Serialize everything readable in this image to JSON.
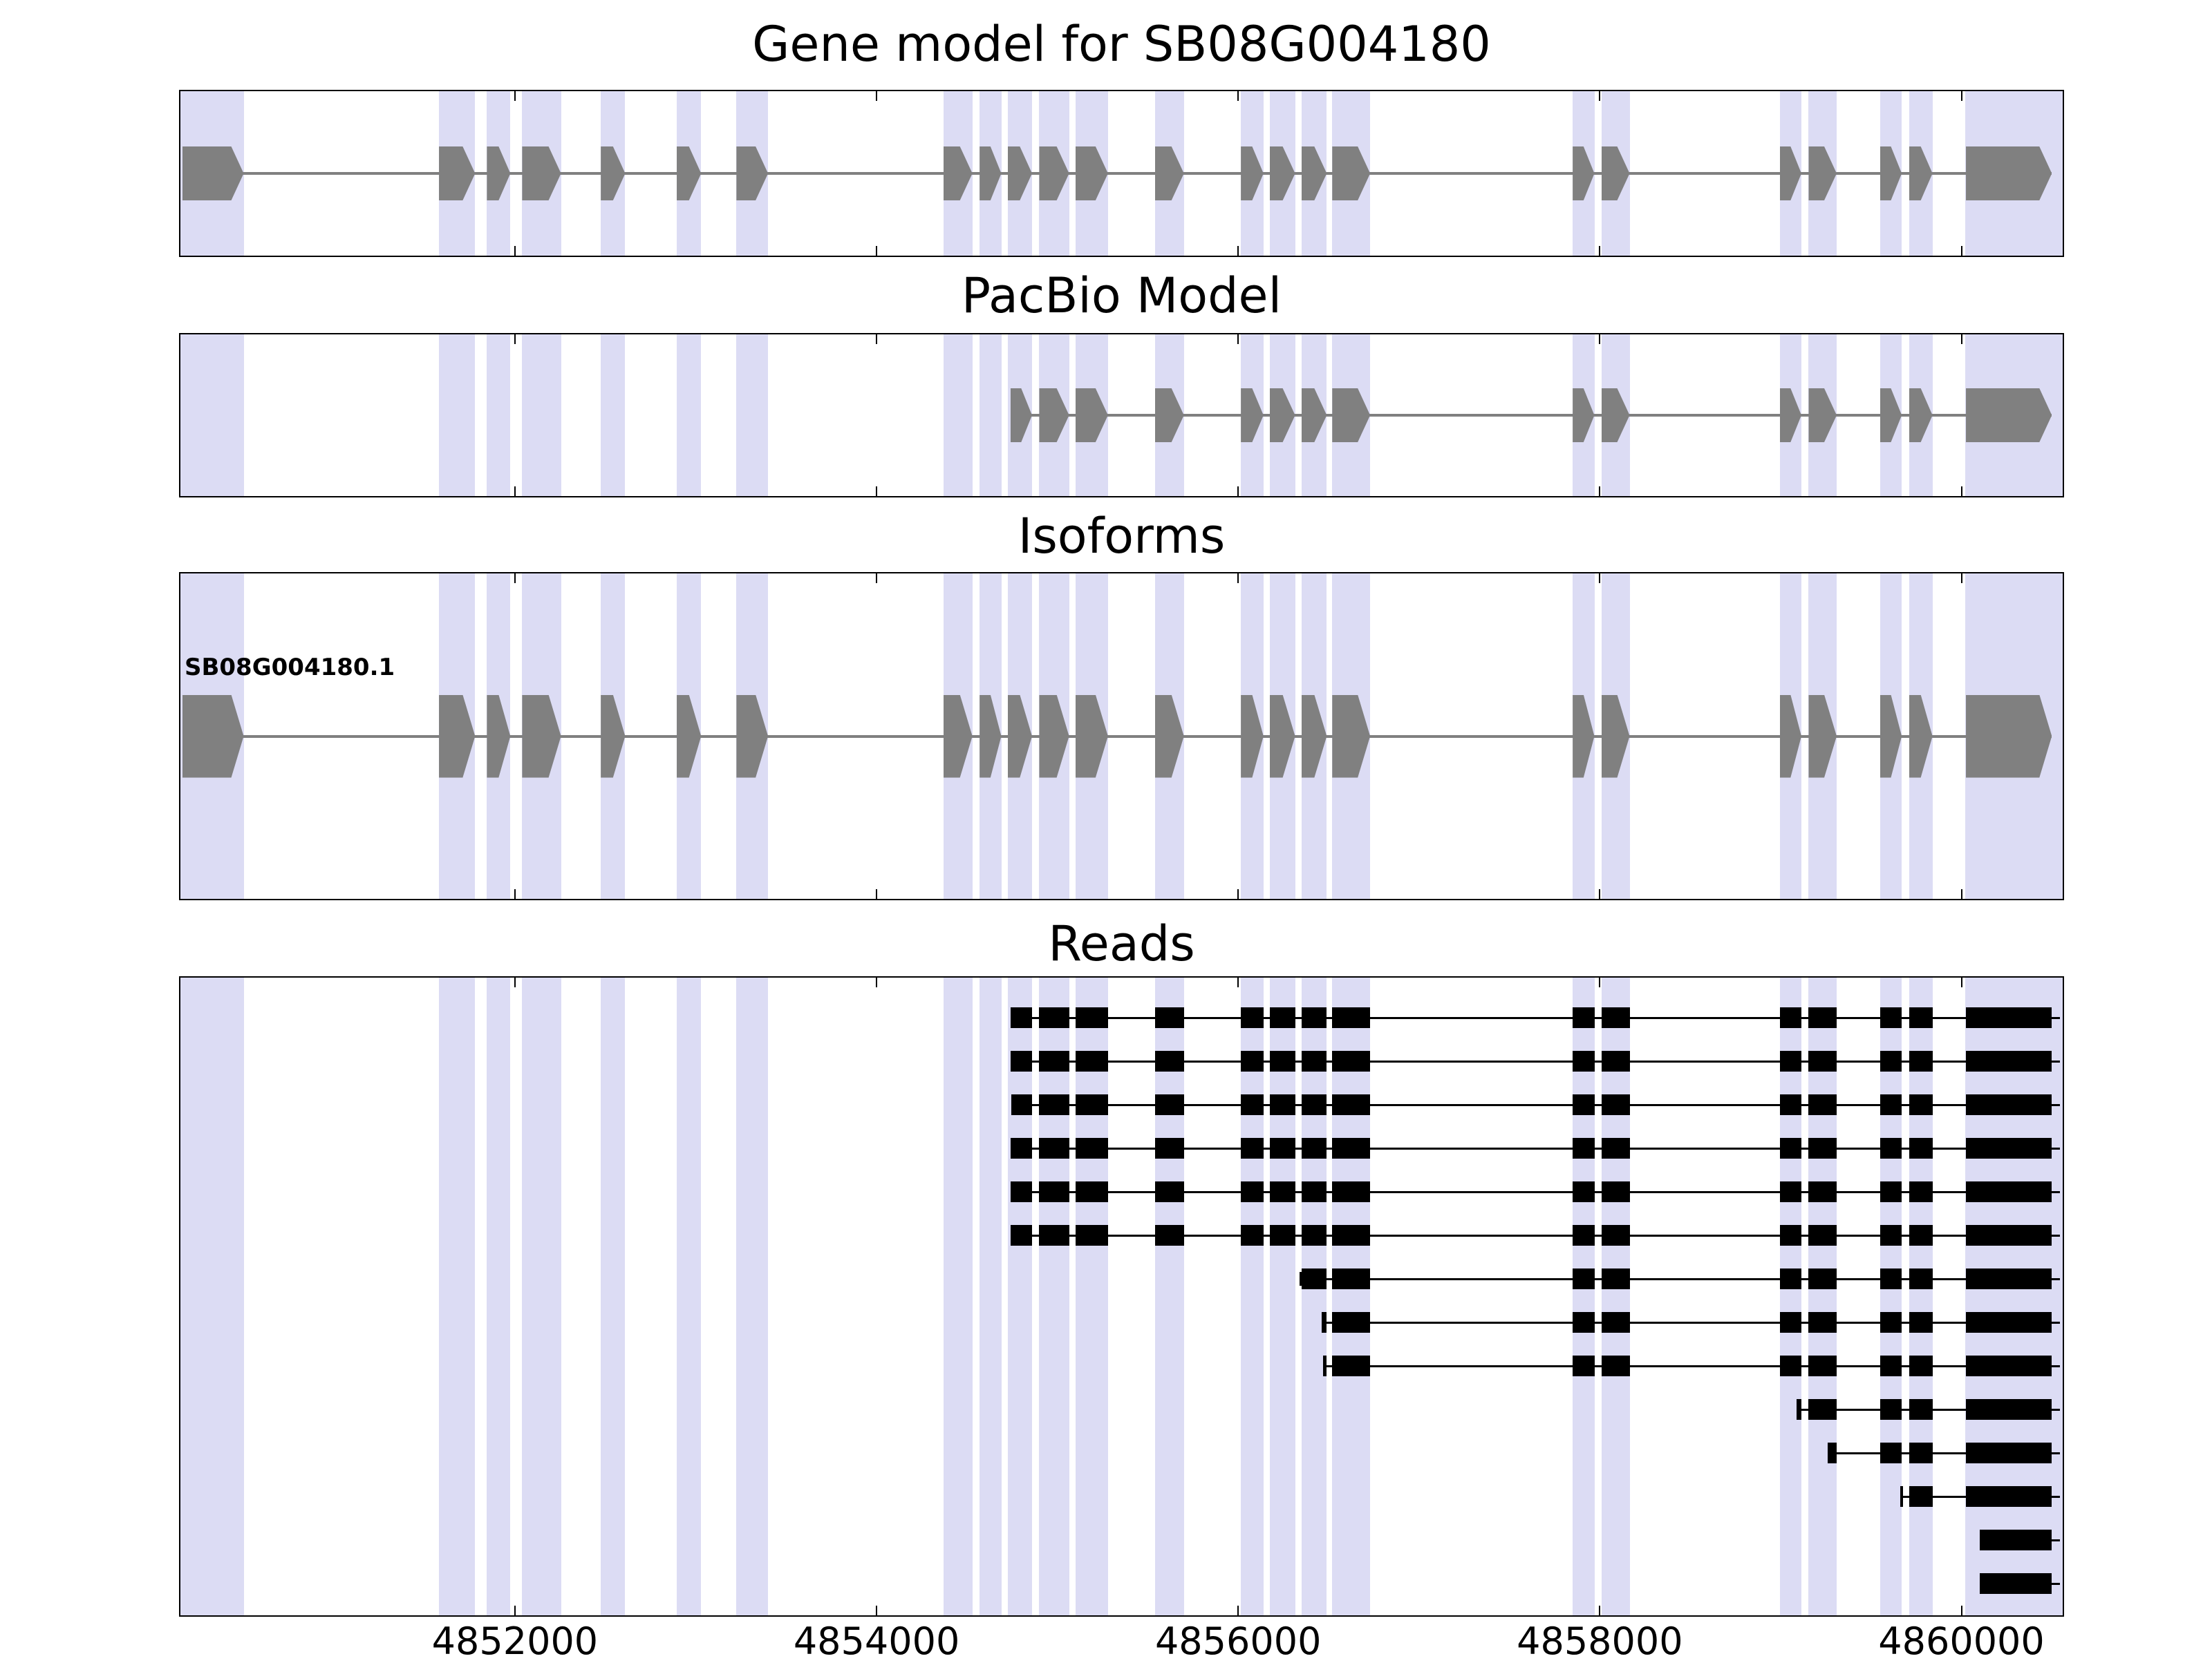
{
  "chart_data": {
    "type": "gene-model-tracks",
    "xlim": [
      4850150,
      4860560
    ],
    "xticks": [
      4852000,
      4854000,
      4856000,
      4858000,
      4860000
    ],
    "xtick_labels": [
      "4852000",
      "4854000",
      "4856000",
      "4858000",
      "4860000"
    ],
    "colors": {
      "exon": "#808080",
      "intron_line": "#808080",
      "read": "#000000",
      "shading": "#dcdcf4",
      "border": "#000000",
      "background": "#ffffff"
    },
    "strand": "+",
    "shading": [
      [
        4850150,
        4850500
      ],
      [
        4851580,
        4851780
      ],
      [
        4851845,
        4851975
      ],
      [
        4852040,
        4852255
      ],
      [
        4852475,
        4852610
      ],
      [
        4852895,
        4853030
      ],
      [
        4853225,
        4853400
      ],
      [
        4854370,
        4854530
      ],
      [
        4854570,
        4854690
      ],
      [
        4854725,
        4854860
      ],
      [
        4854900,
        4855065
      ],
      [
        4855100,
        4855280
      ],
      [
        4855540,
        4855700
      ],
      [
        4856015,
        4856140
      ],
      [
        4856175,
        4856315
      ],
      [
        4856350,
        4856490
      ],
      [
        4856520,
        4856730
      ],
      [
        4857850,
        4857970
      ],
      [
        4858010,
        4858165
      ],
      [
        4858995,
        4859115
      ],
      [
        4859155,
        4859310
      ],
      [
        4859550,
        4859670
      ],
      [
        4859710,
        4859840
      ],
      [
        4860020,
        4860560
      ]
    ],
    "panels": [
      {
        "title": "Gene model for SB08G004180",
        "track_type": "gene",
        "exons": [
          [
            4850160,
            4850500
          ],
          [
            4851580,
            4851780
          ],
          [
            4851845,
            4851975
          ],
          [
            4852040,
            4852255
          ],
          [
            4852475,
            4852610
          ],
          [
            4852895,
            4853030
          ],
          [
            4853225,
            4853400
          ],
          [
            4854370,
            4854530
          ],
          [
            4854570,
            4854690
          ],
          [
            4854725,
            4854860
          ],
          [
            4854900,
            4855065
          ],
          [
            4855100,
            4855280
          ],
          [
            4855540,
            4855700
          ],
          [
            4856015,
            4856140
          ],
          [
            4856175,
            4856315
          ],
          [
            4856350,
            4856490
          ],
          [
            4856520,
            4856730
          ],
          [
            4857850,
            4857970
          ],
          [
            4858010,
            4858165
          ],
          [
            4858995,
            4859115
          ],
          [
            4859155,
            4859310
          ],
          [
            4859550,
            4859670
          ],
          [
            4859710,
            4859840
          ],
          [
            4860025,
            4860500
          ]
        ]
      },
      {
        "title": "PacBio Model",
        "track_type": "gene",
        "exons": [
          [
            4854740,
            4854860
          ],
          [
            4854900,
            4855065
          ],
          [
            4855100,
            4855280
          ],
          [
            4855540,
            4855700
          ],
          [
            4856015,
            4856140
          ],
          [
            4856175,
            4856315
          ],
          [
            4856350,
            4856490
          ],
          [
            4856520,
            4856730
          ],
          [
            4857850,
            4857970
          ],
          [
            4858010,
            4858165
          ],
          [
            4858995,
            4859115
          ],
          [
            4859155,
            4859310
          ],
          [
            4859550,
            4859670
          ],
          [
            4859710,
            4859840
          ],
          [
            4860025,
            4860500
          ]
        ]
      },
      {
        "title": "Isoforms",
        "track_type": "gene",
        "label": "SB08G004180.1",
        "exons": [
          [
            4850160,
            4850500
          ],
          [
            4851580,
            4851780
          ],
          [
            4851845,
            4851975
          ],
          [
            4852040,
            4852255
          ],
          [
            4852475,
            4852610
          ],
          [
            4852895,
            4853030
          ],
          [
            4853225,
            4853400
          ],
          [
            4854370,
            4854530
          ],
          [
            4854570,
            4854690
          ],
          [
            4854725,
            4854860
          ],
          [
            4854900,
            4855065
          ],
          [
            4855100,
            4855280
          ],
          [
            4855540,
            4855700
          ],
          [
            4856015,
            4856140
          ],
          [
            4856175,
            4856315
          ],
          [
            4856350,
            4856490
          ],
          [
            4856520,
            4856730
          ],
          [
            4857850,
            4857970
          ],
          [
            4858010,
            4858165
          ],
          [
            4858995,
            4859115
          ],
          [
            4859155,
            4859310
          ],
          [
            4859550,
            4859670
          ],
          [
            4859710,
            4859840
          ],
          [
            4860025,
            4860500
          ]
        ]
      },
      {
        "title": "Reads",
        "track_type": "reads",
        "reads": [
          {
            "start": 4854740,
            "end": 4860545
          },
          {
            "start": 4854740,
            "end": 4860545
          },
          {
            "start": 4854745,
            "end": 4860545
          },
          {
            "start": 4854740,
            "end": 4860545
          },
          {
            "start": 4854740,
            "end": 4860545
          },
          {
            "start": 4854740,
            "end": 4860545
          },
          {
            "start": 4856340,
            "end": 4860545
          },
          {
            "start": 4856460,
            "end": 4860545
          },
          {
            "start": 4856470,
            "end": 4860545
          },
          {
            "start": 4859090,
            "end": 4860545
          },
          {
            "start": 4859260,
            "end": 4860545
          },
          {
            "start": 4859660,
            "end": 4860545
          },
          {
            "start": 4860100,
            "end": 4860545
          },
          {
            "start": 4860100,
            "end": 4860545
          }
        ]
      }
    ]
  }
}
